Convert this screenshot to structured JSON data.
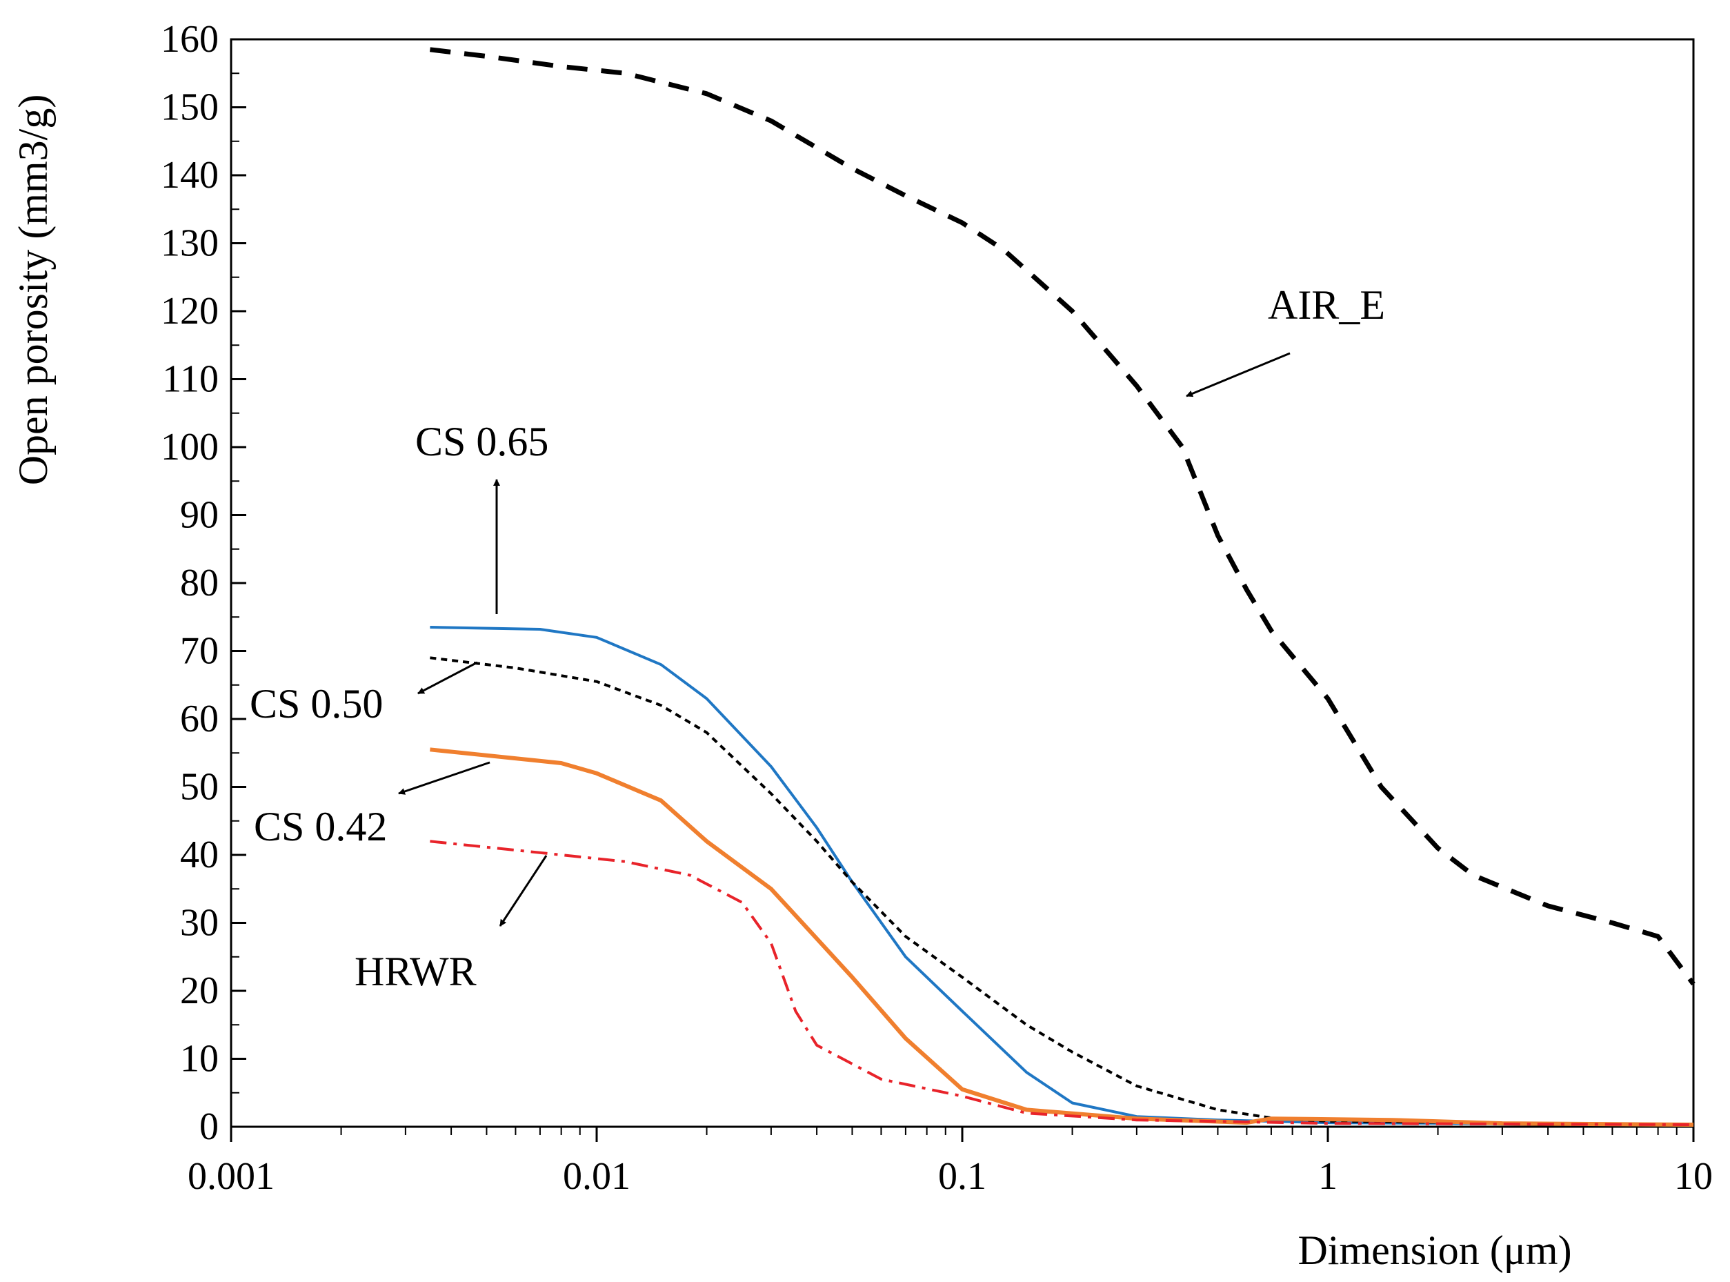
{
  "chart_data": {
    "type": "line",
    "title": "",
    "xlabel": "Dimension (μm)",
    "ylabel": "Open porosity (mm3/g)",
    "xscale": "log",
    "xlim": [
      0.001,
      10
    ],
    "ylim": [
      0,
      160
    ],
    "x_ticks": [
      "0.001",
      "0.01",
      "0.1",
      "1",
      "10"
    ],
    "y_ticks": [
      "0",
      "10",
      "20",
      "30",
      "40",
      "50",
      "60",
      "70",
      "80",
      "90",
      "100",
      "110",
      "120",
      "130",
      "140",
      "150",
      "160"
    ],
    "grid": false,
    "series": [
      {
        "name": "AIR_E",
        "color": "#000000",
        "style": "dashed",
        "points": [
          [
            0.0035,
            158.5
          ],
          [
            0.005,
            157.5
          ],
          [
            0.008,
            156
          ],
          [
            0.012,
            155
          ],
          [
            0.02,
            152
          ],
          [
            0.03,
            148
          ],
          [
            0.05,
            141
          ],
          [
            0.07,
            137
          ],
          [
            0.1,
            133
          ],
          [
            0.13,
            129
          ],
          [
            0.2,
            120
          ],
          [
            0.3,
            109
          ],
          [
            0.4,
            100
          ],
          [
            0.5,
            87
          ],
          [
            0.6,
            79
          ],
          [
            0.7,
            73
          ],
          [
            1.0,
            63
          ],
          [
            1.4,
            50
          ],
          [
            2.0,
            41
          ],
          [
            2.5,
            37
          ],
          [
            4.0,
            32.5
          ],
          [
            6.0,
            30
          ],
          [
            8.0,
            28
          ],
          [
            10.0,
            21
          ]
        ]
      },
      {
        "name": "CS 0.65",
        "color": "#1f77c4",
        "style": "solid",
        "points": [
          [
            0.0035,
            73.5
          ],
          [
            0.007,
            73.2
          ],
          [
            0.01,
            72
          ],
          [
            0.015,
            68
          ],
          [
            0.02,
            63
          ],
          [
            0.03,
            53
          ],
          [
            0.04,
            44
          ],
          [
            0.05,
            36
          ],
          [
            0.07,
            25
          ],
          [
            0.1,
            17
          ],
          [
            0.15,
            8
          ],
          [
            0.2,
            3.5
          ],
          [
            0.3,
            1.5
          ],
          [
            0.5,
            1.0
          ],
          [
            1.0,
            0.6
          ],
          [
            10.0,
            0.3
          ]
        ]
      },
      {
        "name": "CS 0.50",
        "color": "#000000",
        "style": "dotted",
        "points": [
          [
            0.0035,
            69
          ],
          [
            0.006,
            67.5
          ],
          [
            0.01,
            65.5
          ],
          [
            0.015,
            62
          ],
          [
            0.02,
            58
          ],
          [
            0.03,
            49
          ],
          [
            0.04,
            42
          ],
          [
            0.05,
            36
          ],
          [
            0.07,
            28
          ],
          [
            0.1,
            22
          ],
          [
            0.15,
            15
          ],
          [
            0.2,
            11
          ],
          [
            0.3,
            6
          ],
          [
            0.5,
            2.5
          ],
          [
            0.7,
            1.3
          ],
          [
            1.0,
            0.8
          ],
          [
            10.0,
            0.3
          ]
        ]
      },
      {
        "name": "CS 0.42",
        "color": "#f07f2e",
        "style": "solid",
        "points": [
          [
            0.0035,
            55.5
          ],
          [
            0.008,
            53.5
          ],
          [
            0.01,
            52
          ],
          [
            0.015,
            48
          ],
          [
            0.02,
            42
          ],
          [
            0.03,
            35
          ],
          [
            0.05,
            22
          ],
          [
            0.07,
            13
          ],
          [
            0.1,
            5.5
          ],
          [
            0.15,
            2.5
          ],
          [
            0.3,
            1.2
          ],
          [
            0.6,
            0.6
          ],
          [
            0.7,
            1.2
          ],
          [
            1.5,
            1.0
          ],
          [
            3.0,
            0.5
          ],
          [
            10.0,
            0.3
          ]
        ]
      },
      {
        "name": "HRWR",
        "color": "#e8232a",
        "style": "dashdot",
        "points": [
          [
            0.0035,
            42
          ],
          [
            0.008,
            40
          ],
          [
            0.012,
            39
          ],
          [
            0.018,
            37
          ],
          [
            0.025,
            33
          ],
          [
            0.03,
            27
          ],
          [
            0.035,
            17
          ],
          [
            0.04,
            12
          ],
          [
            0.06,
            7
          ],
          [
            0.1,
            4.5
          ],
          [
            0.15,
            2
          ],
          [
            0.3,
            1
          ],
          [
            1.0,
            0.5
          ],
          [
            10.0,
            0.3
          ]
        ]
      }
    ],
    "annotations": [
      {
        "text": "AIR_E",
        "series": "AIR_E"
      },
      {
        "text": "CS 0.65",
        "series": "CS 0.65"
      },
      {
        "text": "CS 0.50",
        "series": "CS 0.50"
      },
      {
        "text": "CS 0.42",
        "series": "CS 0.42"
      },
      {
        "text": "HRWR",
        "series": "HRWR"
      }
    ]
  }
}
